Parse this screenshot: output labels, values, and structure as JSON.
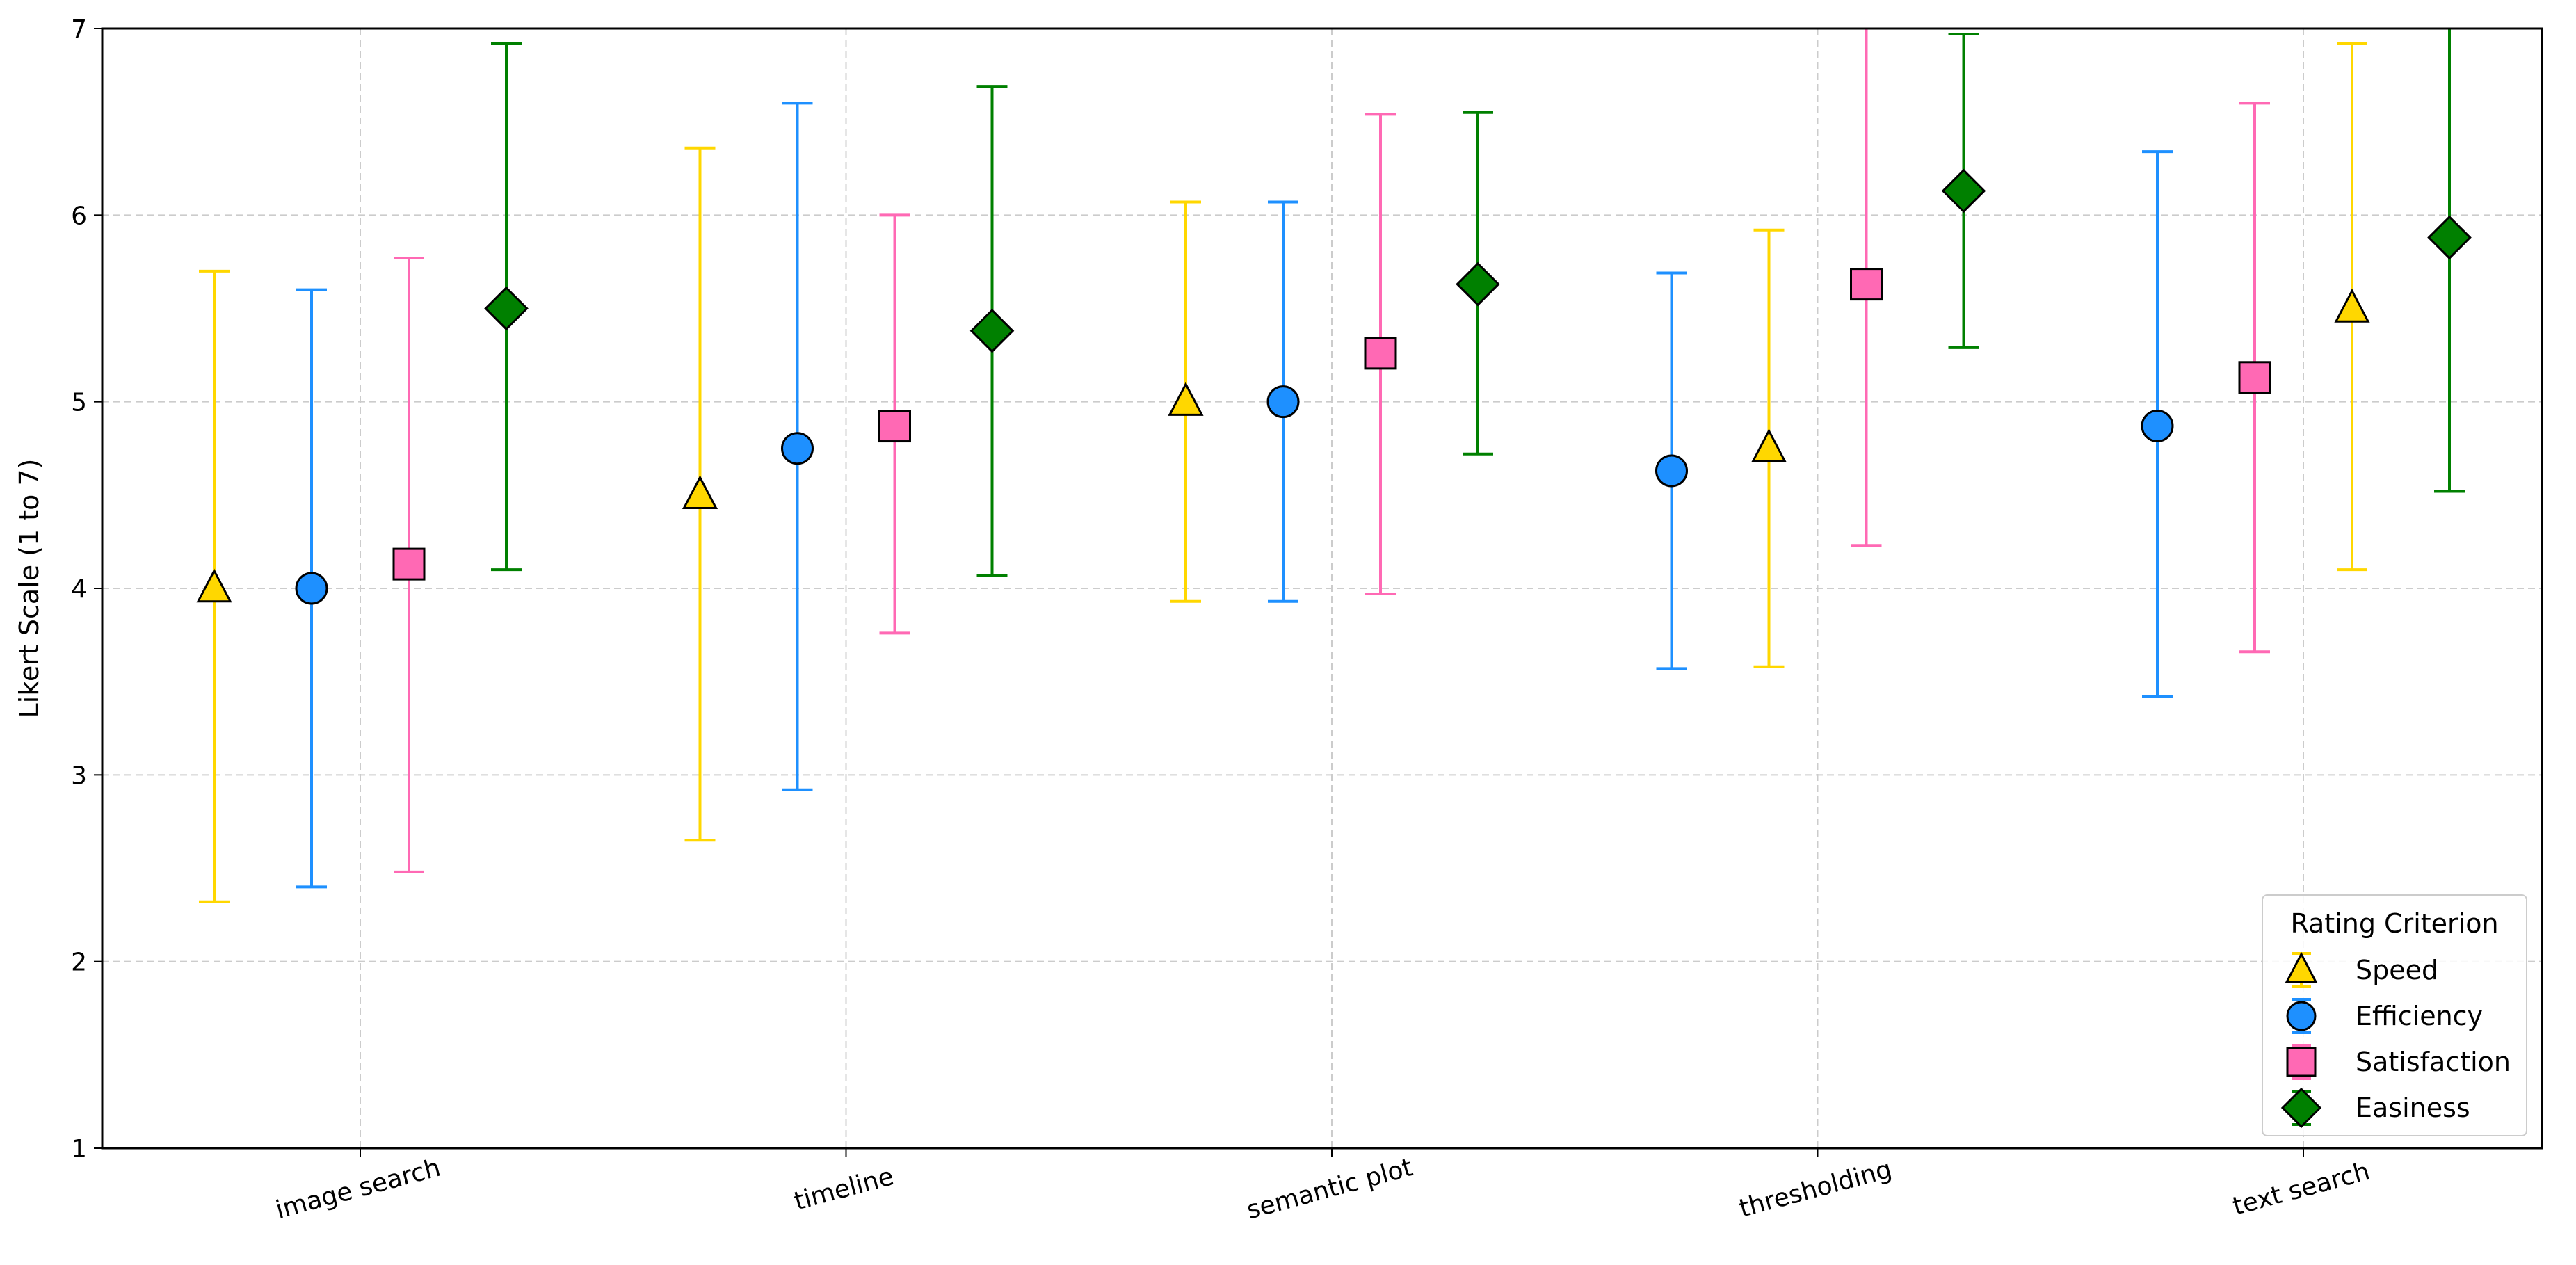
{
  "chart_data": {
    "type": "errorbar",
    "title": "",
    "xlabel": "",
    "ylabel": "Likert Scale (1 to 7)",
    "ylim": [
      1,
      7
    ],
    "yticks": [
      "1",
      "2",
      "3",
      "4",
      "5",
      "6",
      "7"
    ],
    "grid": true,
    "categories": [
      "image search",
      "timeline",
      "semantic plot",
      "thresholding",
      "text search"
    ],
    "legend": {
      "title": "Rating Criterion",
      "placement": "lower-right"
    },
    "series": [
      {
        "name": "Speed",
        "marker": "triangle",
        "color": "#FFD700",
        "mean": [
          4.0,
          4.5,
          5.0,
          4.75,
          5.5
        ],
        "low": [
          2.32,
          2.65,
          3.93,
          3.58,
          4.1
        ],
        "high": [
          5.7,
          6.36,
          6.07,
          5.92,
          6.92
        ],
        "slot": [
          0,
          0,
          0,
          1,
          2
        ]
      },
      {
        "name": "Efficiency",
        "marker": "circle",
        "color": "#1E90FF",
        "mean": [
          4.0,
          4.75,
          5.0,
          4.63,
          4.87
        ],
        "low": [
          2.4,
          2.92,
          3.93,
          3.57,
          3.42
        ],
        "high": [
          5.6,
          6.6,
          6.07,
          5.69,
          6.34
        ],
        "slot": [
          1,
          1,
          1,
          0,
          0
        ]
      },
      {
        "name": "Satisfaction",
        "marker": "square",
        "color": "#FF69B4",
        "mean": [
          4.13,
          4.87,
          5.26,
          5.63,
          5.13
        ],
        "low": [
          2.48,
          3.76,
          3.97,
          4.23,
          3.66
        ],
        "high": [
          5.77,
          6.0,
          6.54,
          7.05,
          6.6
        ],
        "slot": [
          2,
          2,
          2,
          2,
          1
        ]
      },
      {
        "name": "Easiness",
        "marker": "diamond",
        "color": "#008000",
        "mean": [
          5.5,
          5.38,
          5.63,
          6.13,
          5.88
        ],
        "low": [
          4.1,
          4.07,
          4.72,
          5.29,
          4.52
        ],
        "high": [
          6.92,
          6.69,
          6.55,
          6.97,
          7.24
        ],
        "slot": [
          3,
          3,
          3,
          3,
          3
        ]
      }
    ]
  }
}
